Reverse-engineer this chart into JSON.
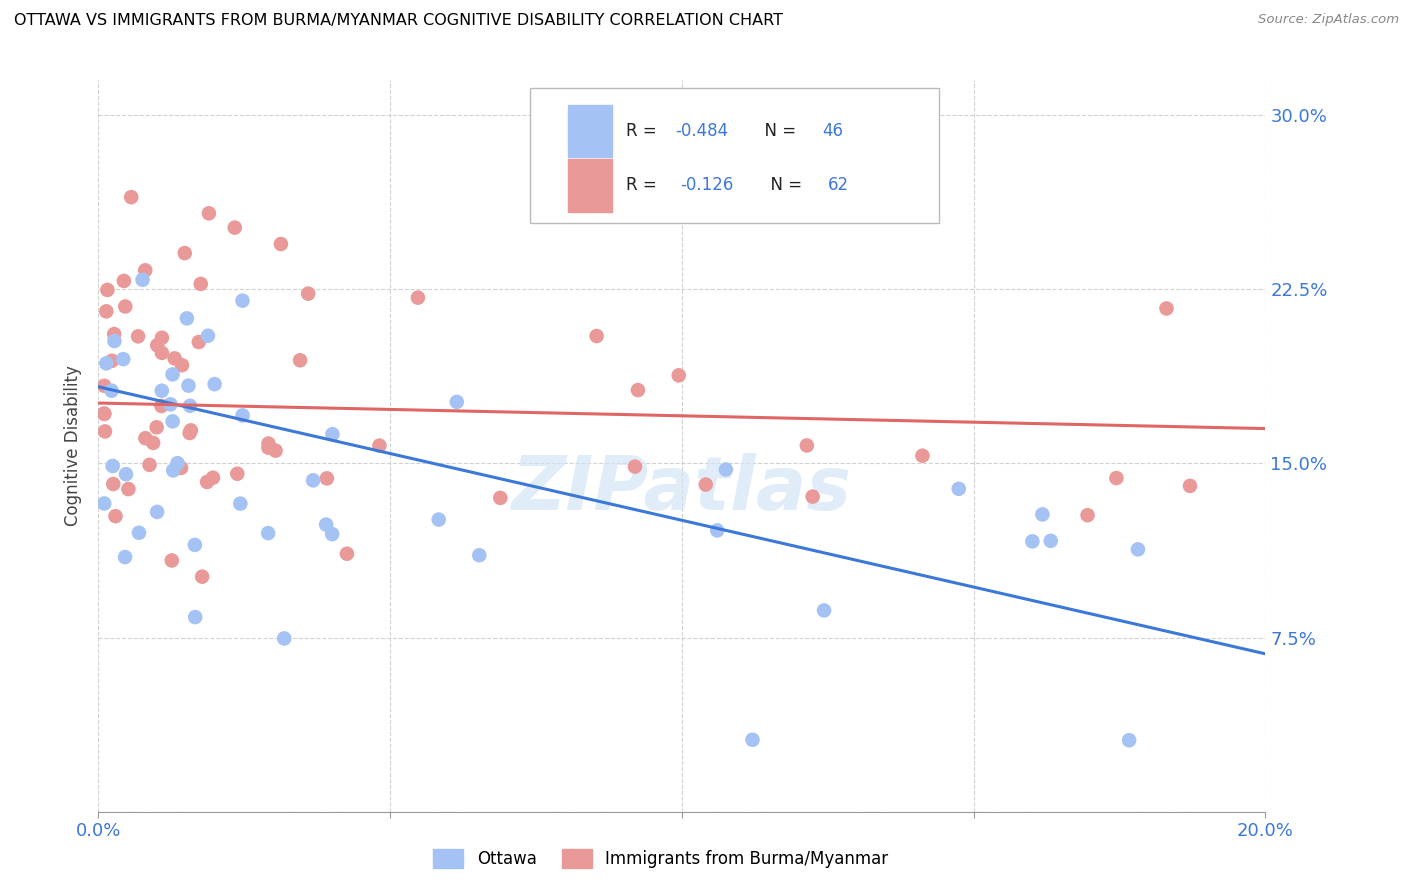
{
  "title": "OTTAWA VS IMMIGRANTS FROM BURMA/MYANMAR COGNITIVE DISABILITY CORRELATION CHART",
  "source": "Source: ZipAtlas.com",
  "ylabel": "Cognitive Disability",
  "xlim": [
    0.0,
    0.2
  ],
  "ylim": [
    0.0,
    0.315
  ],
  "watermark": "ZIPatlas",
  "blue_color": "#a4c2f4",
  "pink_color": "#ea9999",
  "blue_line_color": "#3c78d8",
  "pink_line_color": "#e06666",
  "blue_line_start_y": 0.183,
  "blue_line_end_y": 0.068,
  "pink_line_start_y": 0.176,
  "pink_line_end_y": 0.165,
  "legend_text1_black": "R = ",
  "legend_val1": "-0.484",
  "legend_n1_black": "  N = ",
  "legend_n1_val": "46",
  "legend_text2_black": "R =  ",
  "legend_val2": "-0.126",
  "legend_n2_black": "  N = ",
  "legend_n2_val": "62",
  "ytick_vals": [
    0.0,
    0.075,
    0.15,
    0.225,
    0.3
  ],
  "ytick_labels": [
    "",
    "7.5%",
    "15.0%",
    "22.5%",
    "30.0%"
  ]
}
